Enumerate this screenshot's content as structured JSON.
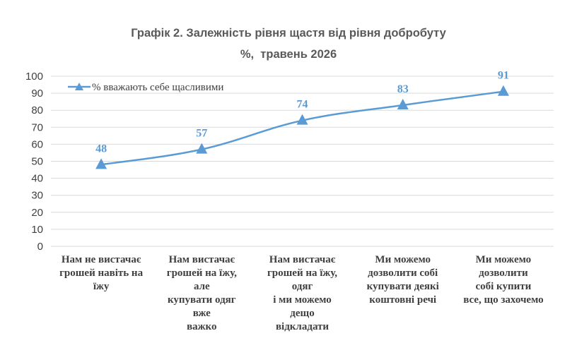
{
  "chart_data": {
    "type": "line",
    "title": "Графік 2. Залежність рівня щастя від рівня добробуту",
    "subtitle": "%,  травень 2026",
    "categories": [
      [
        "Нам не вистачає",
        "грошей навіть  на",
        "їжу"
      ],
      [
        "Нам вистачає",
        "грошей на їжу,",
        "але",
        "купувати одяг",
        "вже",
        "важко"
      ],
      [
        "Нам вистачає",
        "грошей на їжу,",
        "одяг",
        "і ми можемо",
        "дещо",
        "відкладати"
      ],
      [
        "Ми можемо",
        "дозволити собі",
        "купувати деякі",
        "коштовні речі"
      ],
      [
        "Ми можемо",
        "дозволити",
        "собі купити",
        "все, що захочемо"
      ]
    ],
    "series": [
      {
        "name": "% вважають себе щасливими",
        "values": [
          48,
          57,
          74,
          83,
          91
        ],
        "color": "#5b9bd5"
      }
    ],
    "ylim": [
      0,
      100
    ],
    "yticks": [
      0,
      10,
      20,
      30,
      40,
      50,
      60,
      70,
      80,
      90,
      100
    ],
    "grid": true,
    "legend_position": "top-left",
    "marker": "triangle",
    "data_labels": true
  }
}
